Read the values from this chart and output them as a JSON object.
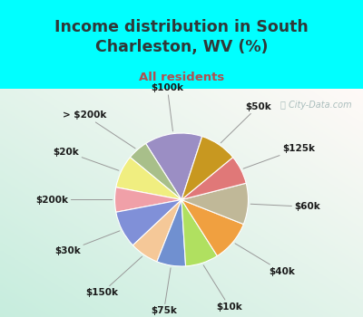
{
  "title": "Income distribution in South\nCharleston, WV (%)",
  "subtitle": "All residents",
  "watermark": "ⓘ City-Data.com",
  "labels": [
    "$100k",
    "> $200k",
    "$20k",
    "$200k",
    "$30k",
    "$150k",
    "$75k",
    "$10k",
    "$40k",
    "$60k",
    "$125k",
    "$50k"
  ],
  "values": [
    14,
    5,
    8,
    6,
    9,
    7,
    7,
    8,
    10,
    10,
    7,
    9
  ],
  "colors": [
    "#9b8ec4",
    "#a8bf8a",
    "#f0ee80",
    "#f0a0a8",
    "#8090d8",
    "#f5c898",
    "#7090d0",
    "#b0e060",
    "#f0a040",
    "#c0b898",
    "#e07878",
    "#c89820"
  ],
  "bg_outer": "#00ffff",
  "title_color": "#303838",
  "subtitle_color": "#b05050",
  "startangle": 72
}
